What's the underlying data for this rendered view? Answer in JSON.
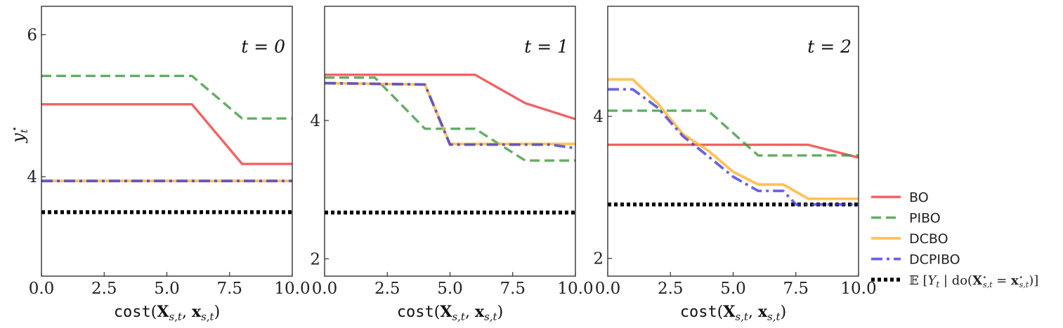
{
  "chart_data": [
    {
      "type": "line",
      "title": "t = 0",
      "xlabel": "cost(X_{s,t}, x_{s,t})",
      "ylabel": "y_t*",
      "xlim": [
        0,
        10
      ],
      "ylim": [
        2.6,
        6.4
      ],
      "xticks": [
        0,
        2.5,
        5,
        7.5,
        10
      ],
      "xtick_labels": [
        "0.0",
        "2.5",
        "5.0",
        "7.5",
        "10.0"
      ],
      "yticks": [
        4,
        6
      ],
      "ytick_labels": [
        "4",
        "6"
      ],
      "series": [
        {
          "name": "BO",
          "x": [
            0,
            6,
            8,
            10
          ],
          "y": [
            5.02,
            5.02,
            4.18,
            4.18
          ]
        },
        {
          "name": "PIBO",
          "x": [
            0,
            6,
            8,
            10
          ],
          "y": [
            5.42,
            5.42,
            4.82,
            4.82
          ]
        },
        {
          "name": "DCBO",
          "x": [
            0,
            10
          ],
          "y": [
            3.94,
            3.94
          ]
        },
        {
          "name": "DCPIBO",
          "x": [
            0,
            10
          ],
          "y": [
            3.94,
            3.94
          ]
        },
        {
          "name": "E[Y_t | do(X*_{s,t} = x*_{s,t})]",
          "x": [
            0,
            10
          ],
          "y": [
            3.5,
            3.5
          ]
        }
      ]
    },
    {
      "type": "line",
      "title": "t = 1",
      "xlabel": "cost(X_{s,t}, x_{s,t})",
      "ylabel": "",
      "xlim": [
        0,
        10
      ],
      "ylim": [
        1.75,
        5.65
      ],
      "xticks": [
        0,
        2.5,
        5,
        7.5,
        10
      ],
      "xtick_labels": [
        "0.0",
        "2.5",
        "5.0",
        "7.5",
        "10.0"
      ],
      "yticks": [
        2,
        4
      ],
      "ytick_labels": [
        "2",
        "4"
      ],
      "series": [
        {
          "name": "BO",
          "x": [
            0,
            6,
            8,
            10
          ],
          "y": [
            4.66,
            4.66,
            4.25,
            4.02
          ]
        },
        {
          "name": "PIBO",
          "x": [
            0,
            2,
            4,
            6,
            8,
            10
          ],
          "y": [
            4.62,
            4.62,
            3.88,
            3.88,
            3.42,
            3.42
          ]
        },
        {
          "name": "DCBO",
          "x": [
            0,
            4,
            5,
            10
          ],
          "y": [
            4.54,
            4.52,
            3.66,
            3.66
          ]
        },
        {
          "name": "DCPIBO",
          "x": [
            0,
            4,
            5,
            9,
            10
          ],
          "y": [
            4.54,
            4.52,
            3.65,
            3.65,
            3.6
          ]
        },
        {
          "name": "E[Y_t | do(X*_{s,t} = x*_{s,t})]",
          "x": [
            0,
            10
          ],
          "y": [
            2.67,
            2.67
          ]
        }
      ]
    },
    {
      "type": "line",
      "title": "t = 2",
      "xlabel": "cost(X_{s,t}, x_{s,t})",
      "ylabel": "",
      "xlim": [
        0,
        10
      ],
      "ylim": [
        1.75,
        5.55
      ],
      "xticks": [
        0,
        2.5,
        5,
        7.5,
        10
      ],
      "xtick_labels": [
        "0.0",
        "2.5",
        "5.0",
        "7.5",
        "10.0"
      ],
      "yticks": [
        2,
        4
      ],
      "ytick_labels": [
        "2",
        "4"
      ],
      "series": [
        {
          "name": "BO",
          "x": [
            0,
            8,
            10
          ],
          "y": [
            3.6,
            3.6,
            3.42
          ]
        },
        {
          "name": "PIBO",
          "x": [
            0,
            4,
            6,
            10
          ],
          "y": [
            4.08,
            4.08,
            3.45,
            3.45
          ]
        },
        {
          "name": "DCBO",
          "x": [
            0,
            1,
            2,
            3,
            4,
            5,
            6,
            7,
            8,
            10
          ],
          "y": [
            4.52,
            4.52,
            4.18,
            3.75,
            3.52,
            3.22,
            3.04,
            3.04,
            2.84,
            2.84
          ]
        },
        {
          "name": "DCPIBO",
          "x": [
            0,
            1,
            2,
            3,
            4,
            5,
            6,
            7,
            7.5,
            10
          ],
          "y": [
            4.38,
            4.38,
            4.12,
            3.72,
            3.44,
            3.15,
            2.95,
            2.95,
            2.76,
            2.76
          ]
        },
        {
          "name": "E[Y_t | do(X*_{s,t} = x*_{s,t})]",
          "x": [
            0,
            10
          ],
          "y": [
            2.76,
            2.76
          ]
        }
      ]
    }
  ],
  "legend": {
    "placement": "right",
    "entries": [
      {
        "label": "BO",
        "color": "#f0393b",
        "style": "solid"
      },
      {
        "label": "PIBO",
        "color": "#3a9a3a",
        "style": "dashed"
      },
      {
        "label": "DCBO",
        "color": "#ffb22e",
        "style": "solid"
      },
      {
        "label": "DCPIBO",
        "color": "#3f37d9",
        "style": "dashdot"
      },
      {
        "label": "𝔼[Y_t | do(X*_{s,t} = x*_{s,t})]",
        "color": "#000000",
        "style": "dotted"
      }
    ]
  },
  "styles": {
    "BO": {
      "color": "#f0393b",
      "dash": "",
      "width": 3.4,
      "opacity": 0.8
    },
    "PIBO": {
      "color": "#3a9a3a",
      "dash": "14 7",
      "width": 3.4,
      "opacity": 0.8
    },
    "DCBO": {
      "color": "#ffb22e",
      "dash": "",
      "width": 3.8,
      "opacity": 0.8
    },
    "DCPIBO": {
      "color": "#3f37d9",
      "dash": "16 6 4 6",
      "width": 3.8,
      "opacity": 0.78
    },
    "E[Y_t | do(X*_{s,t} = x*_{s,t})]": {
      "color": "#000000",
      "dash": "5 4",
      "width": 5.5,
      "opacity": 1
    }
  }
}
